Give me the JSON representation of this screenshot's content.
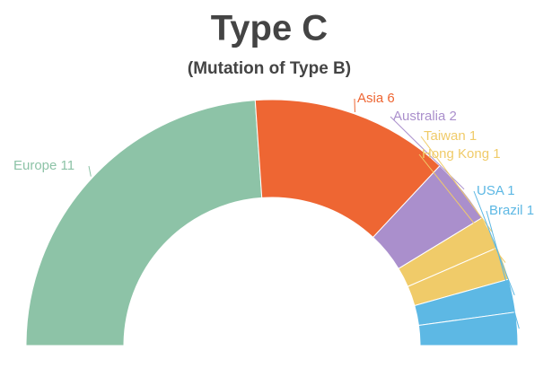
{
  "chart_data": {
    "type": "semi-donut",
    "title": "Type C",
    "subtitle": "(Mutation of Type B)",
    "categories": [
      "Europe",
      "Asia",
      "Australia",
      "Taiwan",
      "Hong Kong",
      "USA",
      "Brazil"
    ],
    "values": [
      11,
      6,
      2,
      1,
      1,
      1,
      1
    ],
    "colors": [
      "#8dc3a7",
      "#ee6633",
      "#aa8fcc",
      "#f0cb69",
      "#f0cb69",
      "#5db8e4",
      "#5db8e4"
    ]
  }
}
